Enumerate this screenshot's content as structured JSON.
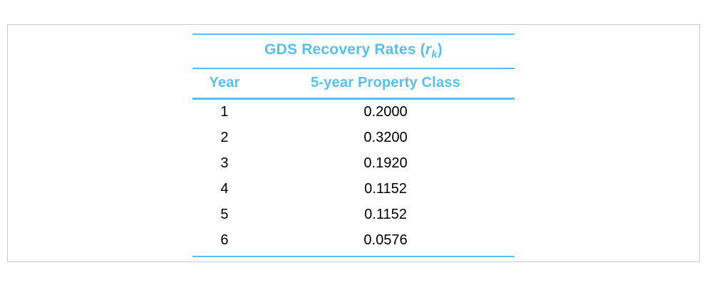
{
  "accent_color": "#55c1ec",
  "table": {
    "title_prefix": "GDS Recovery Rates (",
    "title_var": "r",
    "title_sub": "k",
    "title_suffix": ")",
    "col_year": "Year",
    "col_class": "5-year Property Class",
    "rows": [
      {
        "year": "1",
        "rate": "0.2000"
      },
      {
        "year": "2",
        "rate": "0.3200"
      },
      {
        "year": "3",
        "rate": "0.1920"
      },
      {
        "year": "4",
        "rate": "0.1152"
      },
      {
        "year": "5",
        "rate": "0.1152"
      },
      {
        "year": "6",
        "rate": "0.0576"
      }
    ]
  }
}
